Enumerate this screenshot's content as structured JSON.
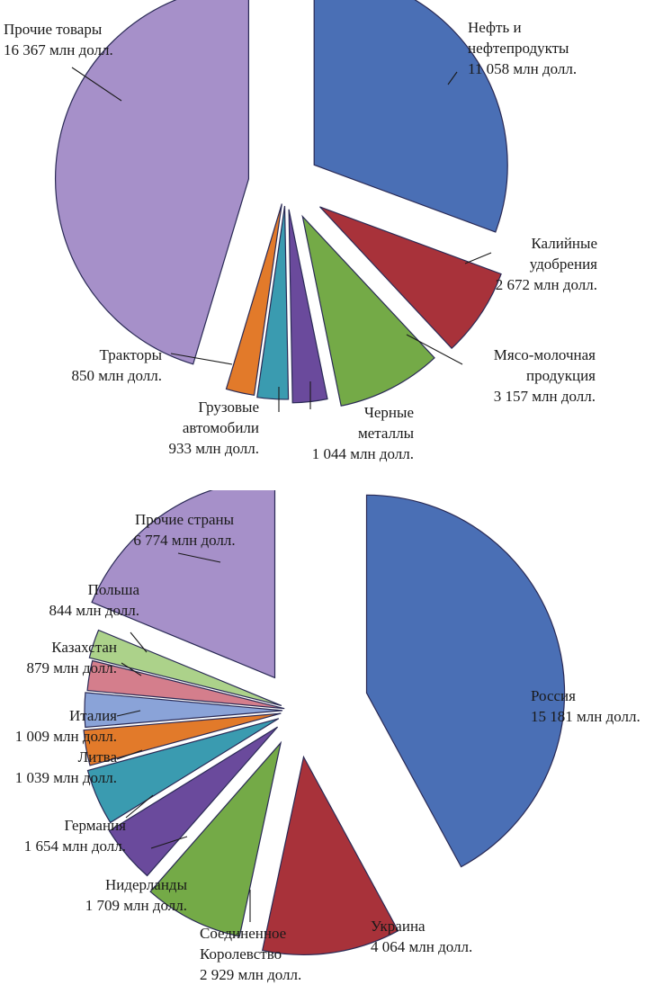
{
  "chart_data": [
    {
      "type": "pie",
      "title": "",
      "legend": "none",
      "unit": "млн долл.",
      "slices": [
        {
          "name": "Нефть и\nнефтепродукты",
          "value": 11058,
          "value_label": "11 058 млн долл.",
          "color": "#4a6fb5"
        },
        {
          "name": "Калийные\nудобрения",
          "value": 2672,
          "value_label": "2 672 млн долл.",
          "color": "#a8323a"
        },
        {
          "name": "Мясо-молочная\nпродукция",
          "value": 3157,
          "value_label": "3 157 млн долл.",
          "color": "#74aa47"
        },
        {
          "name": "Черные\nметаллы",
          "value": 1044,
          "value_label": "1 044 млн долл.",
          "color": "#6a4a9c"
        },
        {
          "name": "Грузовые\nавтомобили",
          "value": 933,
          "value_label": "933 млн долл.",
          "color": "#3a9bb0"
        },
        {
          "name": "Тракторы",
          "value": 850,
          "value_label": "850 млн долл.",
          "color": "#e27a2a"
        },
        {
          "name": "Прочие товары",
          "value": 16367,
          "value_label": "16 367 млн долл.",
          "color": "#a690c9"
        }
      ]
    },
    {
      "type": "pie",
      "title": "",
      "legend": "none",
      "unit": "млн долл.",
      "slices": [
        {
          "name": "Россия",
          "value": 15181,
          "value_label": "15 181 млн долл.",
          "color": "#4a6fb5"
        },
        {
          "name": "Украина",
          "value": 4064,
          "value_label": "4 064 млн долл.",
          "color": "#a8323a"
        },
        {
          "name": "Соединенное\nКоролевство",
          "value": 2929,
          "value_label": "2 929 млн долл.",
          "color": "#74aa47"
        },
        {
          "name": "Нидерланды",
          "value": 1709,
          "value_label": "1 709 млн долл.",
          "color": "#6a4a9c"
        },
        {
          "name": "Германия",
          "value": 1654,
          "value_label": "1 654 млн долл.",
          "color": "#3a9bb0"
        },
        {
          "name": "Литва",
          "value": 1039,
          "value_label": "1 039 млн долл.",
          "color": "#e27a2a"
        },
        {
          "name": "Италия",
          "value": 1009,
          "value_label": "1 009 млн долл.",
          "color": "#8aa3d8"
        },
        {
          "name": "Казахстан",
          "value": 879,
          "value_label": "879 млн долл.",
          "color": "#d47e8c"
        },
        {
          "name": "Польша",
          "value": 844,
          "value_label": "844 млн долл.",
          "color": "#acd28a"
        },
        {
          "name": "Прочие страны",
          "value": 6774,
          "value_label": "6 774 млн долл.",
          "color": "#a690c9"
        }
      ]
    }
  ]
}
